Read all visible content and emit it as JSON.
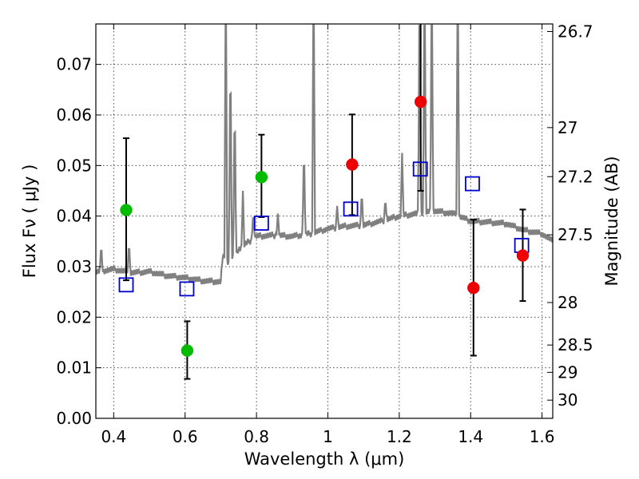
{
  "chart_data": {
    "type": "scatter",
    "xlabel": "Wavelength  λ (μm)",
    "ylabel": "Flux  Fν  ( μJy )",
    "ylabel_right": "Magnitude (AB)",
    "xlim": [
      0.35,
      1.63
    ],
    "ylim": [
      0.0,
      0.078
    ],
    "grid": true,
    "x_ticks": [
      0.4,
      0.6,
      0.8,
      1.0,
      1.2,
      1.4,
      1.6
    ],
    "x_tick_labels": [
      "0.4",
      "0.6",
      "0.8",
      "1",
      "1.2",
      "1.4",
      "1.6"
    ],
    "y_ticks": [
      0.0,
      0.01,
      0.02,
      0.03,
      0.04,
      0.05,
      0.06,
      0.07
    ],
    "y_tick_labels": [
      "0.00",
      "0.01",
      "0.02",
      "0.03",
      "0.04",
      "0.05",
      "0.06",
      "0.07"
    ],
    "mag_ticks": [
      {
        "label": "26.7",
        "flux": 0.0765
      },
      {
        "label": "27",
        "flux": 0.0575
      },
      {
        "label": "27.2",
        "flux": 0.0478
      },
      {
        "label": "27.5",
        "flux": 0.0363
      },
      {
        "label": "28",
        "flux": 0.0229
      },
      {
        "label": "28.5",
        "flux": 0.0145
      },
      {
        "label": "29",
        "flux": 0.0091
      },
      {
        "label": "30",
        "flux": 0.0036
      }
    ],
    "series": [
      {
        "kind": "model",
        "color": "#808080",
        "continuum": [
          [
            0.35,
            0.029
          ],
          [
            0.4,
            0.0295
          ],
          [
            0.45,
            0.0288
          ],
          [
            0.5,
            0.029
          ],
          [
            0.55,
            0.0282
          ],
          [
            0.6,
            0.0278
          ],
          [
            0.65,
            0.0272
          ],
          [
            0.7,
            0.027
          ],
          [
            0.705,
            0.032
          ],
          [
            0.72,
            0.031
          ],
          [
            0.75,
            0.0335
          ],
          [
            0.8,
            0.036
          ],
          [
            0.85,
            0.0362
          ],
          [
            0.9,
            0.036
          ],
          [
            0.95,
            0.0365
          ],
          [
            1.0,
            0.0375
          ],
          [
            1.05,
            0.038
          ],
          [
            1.1,
            0.0382
          ],
          [
            1.15,
            0.039
          ],
          [
            1.2,
            0.04
          ],
          [
            1.25,
            0.0405
          ],
          [
            1.3,
            0.041
          ],
          [
            1.35,
            0.0405
          ],
          [
            1.4,
            0.039
          ],
          [
            1.45,
            0.0388
          ],
          [
            1.5,
            0.0385
          ],
          [
            1.55,
            0.0372
          ],
          [
            1.6,
            0.0365
          ],
          [
            1.63,
            0.035
          ]
        ],
        "lines": [
          {
            "x": 0.365,
            "h": 0.0345
          },
          {
            "x": 0.443,
            "h": 0.035
          },
          {
            "x": 0.714,
            "h": 0.09
          },
          {
            "x": 0.727,
            "h": 0.075
          },
          {
            "x": 0.739,
            "h": 0.0645
          },
          {
            "x": 0.762,
            "h": 0.045
          },
          {
            "x": 0.791,
            "h": 0.041
          },
          {
            "x": 0.86,
            "h": 0.0405
          },
          {
            "x": 0.933,
            "h": 0.0545
          },
          {
            "x": 0.96,
            "h": 0.09
          },
          {
            "x": 1.026,
            "h": 0.042
          },
          {
            "x": 1.095,
            "h": 0.045
          },
          {
            "x": 1.161,
            "h": 0.0435
          },
          {
            "x": 1.208,
            "h": 0.0525
          },
          {
            "x": 1.257,
            "h": 0.09
          },
          {
            "x": 1.271,
            "h": 0.09
          },
          {
            "x": 1.291,
            "h": 0.09
          },
          {
            "x": 1.364,
            "h": 0.09
          }
        ]
      },
      {
        "kind": "model_photometry",
        "marker": "open-square",
        "color": "#0000cc",
        "points": [
          {
            "x": 0.435,
            "y": 0.0264
          },
          {
            "x": 0.605,
            "y": 0.0256
          },
          {
            "x": 0.814,
            "y": 0.0386
          },
          {
            "x": 1.064,
            "y": 0.0414
          },
          {
            "x": 1.259,
            "y": 0.0493
          },
          {
            "x": 1.405,
            "y": 0.0464
          },
          {
            "x": 1.543,
            "y": 0.0342
          }
        ]
      },
      {
        "kind": "observed_optical",
        "marker": "filled-circle",
        "color": "#00bb00",
        "points": [
          {
            "x": 0.435,
            "y": 0.0412,
            "err_low": 0.0273,
            "err_high": 0.0554
          },
          {
            "x": 0.606,
            "y": 0.0134,
            "err_low": 0.0078,
            "err_high": 0.0192
          },
          {
            "x": 0.814,
            "y": 0.0477,
            "err_low": 0.0398,
            "err_high": 0.0561
          }
        ]
      },
      {
        "kind": "observed_nir",
        "marker": "filled-circle",
        "color": "#ee0000",
        "points": [
          {
            "x": 1.068,
            "y": 0.0502,
            "err_low": 0.0402,
            "err_high": 0.0601
          },
          {
            "x": 1.26,
            "y": 0.0626,
            "err_low": 0.045,
            "err_high": 0.09
          },
          {
            "x": 1.408,
            "y": 0.0258,
            "err_low": 0.0124,
            "err_high": 0.0393
          },
          {
            "x": 1.546,
            "y": 0.0322,
            "err_low": 0.0232,
            "err_high": 0.0413
          }
        ]
      }
    ]
  }
}
